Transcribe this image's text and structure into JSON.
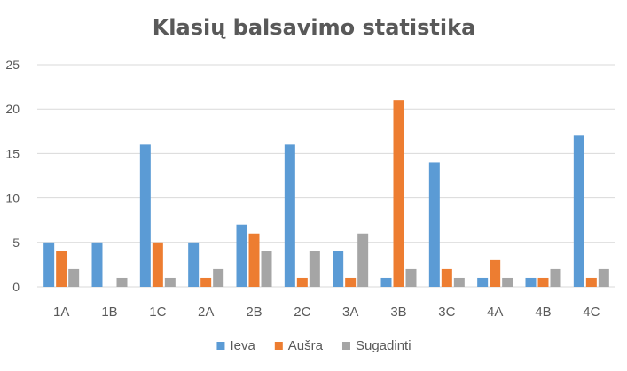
{
  "chart_data": {
    "type": "bar",
    "title": "Klasių balsavimo statistika",
    "xlabel": "",
    "ylabel": "",
    "ylim": [
      0,
      25
    ],
    "yticks": [
      0,
      5,
      10,
      15,
      20,
      25
    ],
    "grid": true,
    "legend": "bottom",
    "categories": [
      "1A",
      "1B",
      "1C",
      "2A",
      "2B",
      "2C",
      "3A",
      "3B",
      "3C",
      "4A",
      "4B",
      "4C"
    ],
    "series": [
      {
        "name": "Ieva",
        "color": "#5b9bd5",
        "values": [
          5,
          5,
          16,
          5,
          7,
          16,
          4,
          1,
          14,
          1,
          1,
          17
        ]
      },
      {
        "name": "Aušra",
        "color": "#ed7d31",
        "values": [
          4,
          0,
          5,
          1,
          6,
          1,
          1,
          21,
          2,
          3,
          1,
          1
        ]
      },
      {
        "name": "Sugadinti",
        "color": "#a5a5a5",
        "values": [
          2,
          1,
          1,
          2,
          4,
          4,
          6,
          2,
          1,
          1,
          2,
          2
        ]
      }
    ]
  }
}
